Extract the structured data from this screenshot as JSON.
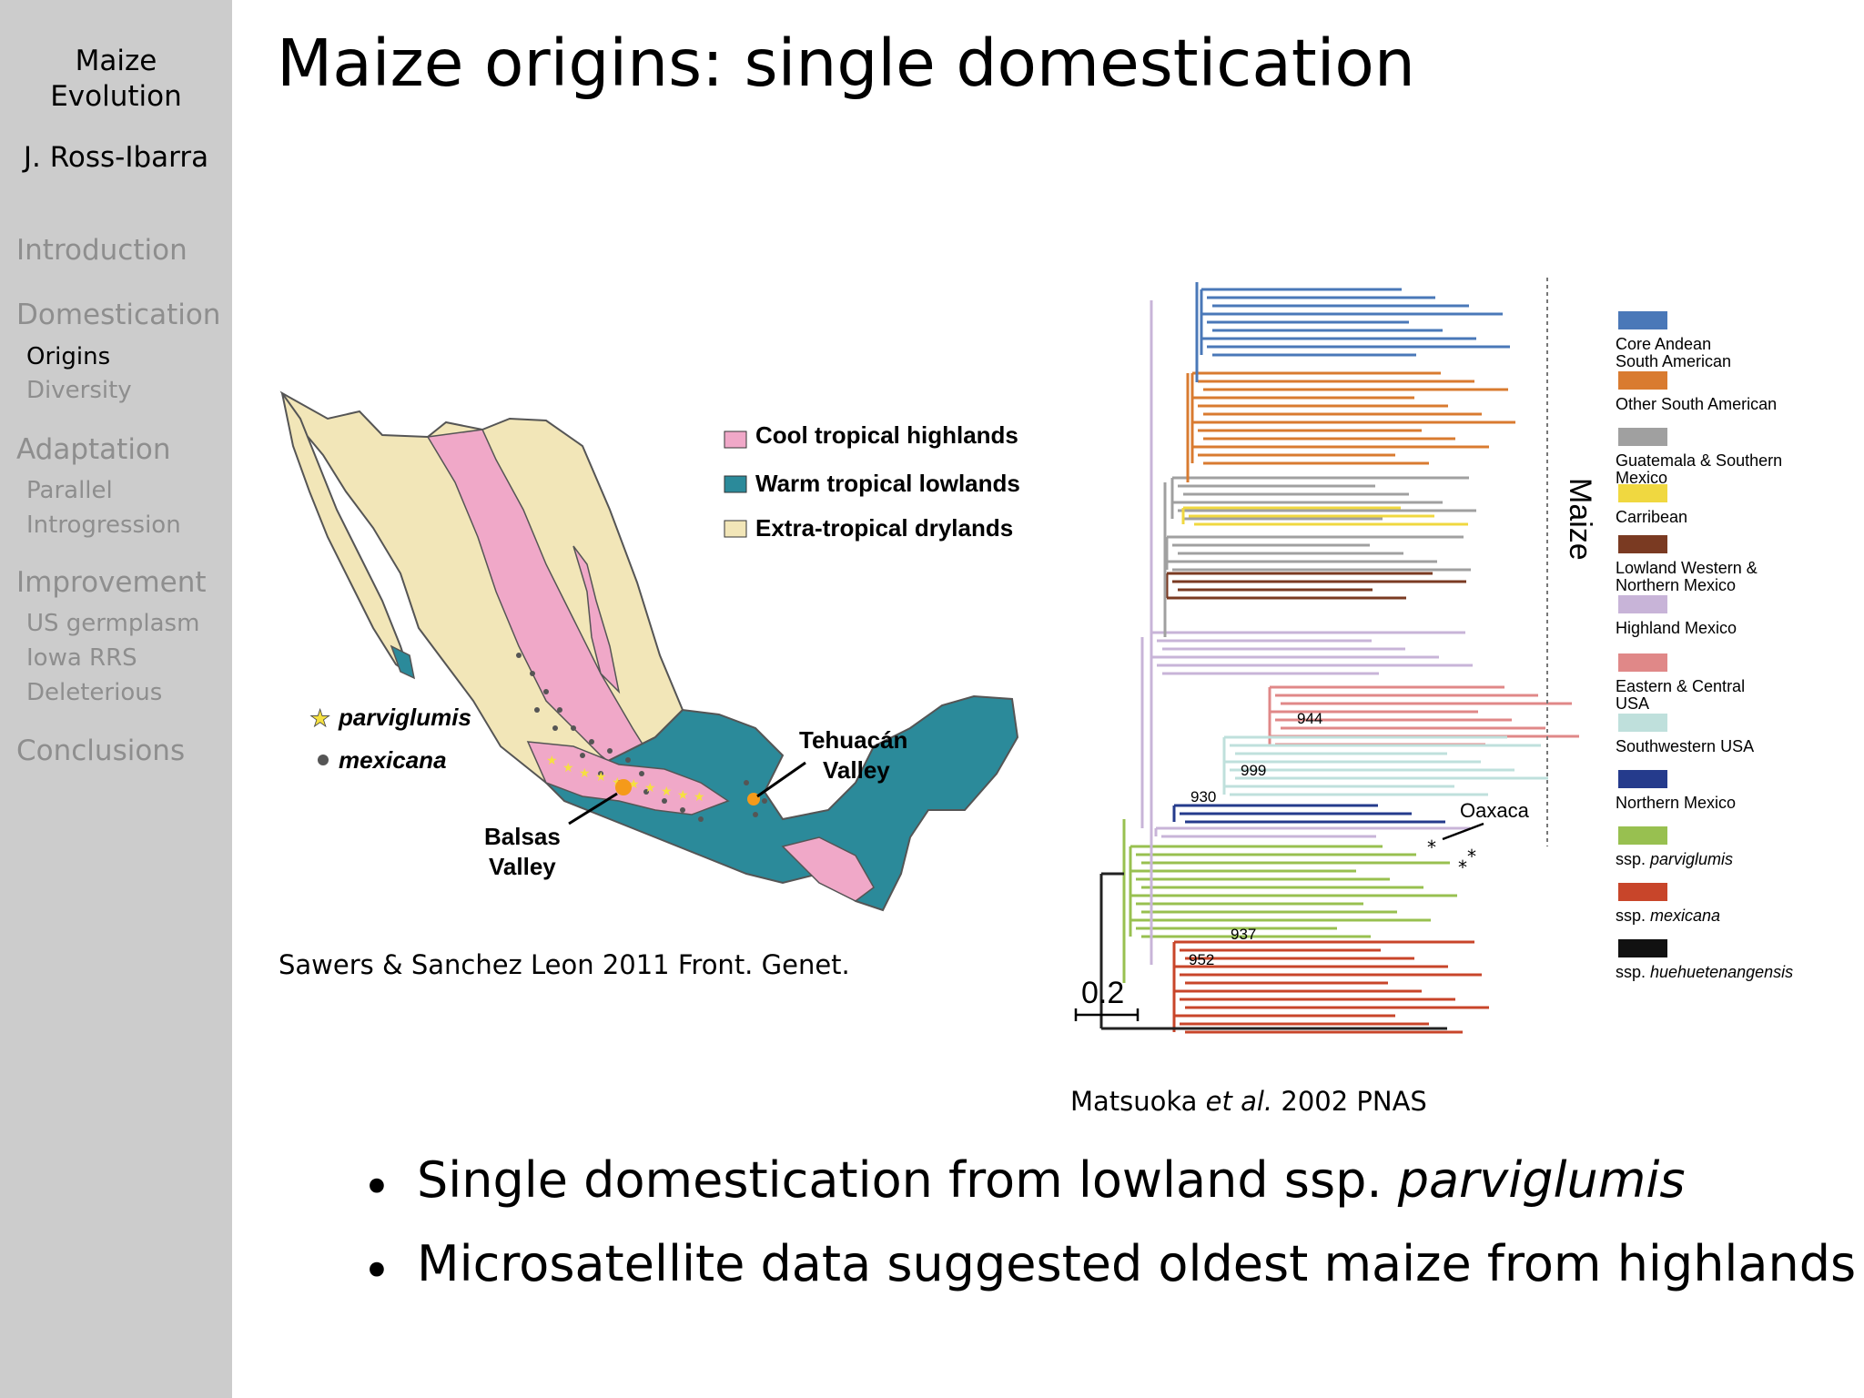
{
  "sidebar": {
    "title_line1": "Maize",
    "title_line2": "Evolution",
    "author": "J. Ross-Ibarra",
    "sections": [
      {
        "label": "Introduction",
        "subs": []
      },
      {
        "label": "Domestication",
        "subs": [
          "Origins",
          "Diversity"
        ]
      },
      {
        "label": "Adaptation",
        "subs": [
          "Parallel",
          "Introgression"
        ]
      },
      {
        "label": "Improvement",
        "subs": [
          "US germplasm",
          "Iowa RRS",
          "Deleterious"
        ]
      },
      {
        "label": "Conclusions",
        "subs": []
      }
    ],
    "active_sub": "Origins"
  },
  "slide": {
    "title": "Maize origins: single domestication",
    "bullets": [
      {
        "text": "Single domestication from lowland ssp. ",
        "italic": "parviglumis"
      },
      {
        "text": "Microsatellite data suggested oldest maize from highlands",
        "italic": ""
      }
    ]
  },
  "map_figure": {
    "legend": [
      "Cool tropical highlands",
      "Warm tropical lowlands",
      "Extra-tropical drylands"
    ],
    "legend_colors": [
      "#f0a8c8",
      "#2b8a9a",
      "#f2e6b8"
    ],
    "species": [
      "parviglumis",
      "mexicana"
    ],
    "places": {
      "tehuacan_1": "Tehuacán",
      "tehuacan_2": "Valley",
      "balsas_1": "Balsas",
      "balsas_2": "Valley"
    },
    "caption": "Sawers & Sanchez Leon 2011 Front. Genet."
  },
  "tree_figure": {
    "group_label": "Maize",
    "scale_label": "0.2",
    "bootstrap": [
      "944",
      "999",
      "930",
      "937",
      "952"
    ],
    "oaxaca": "Oaxaca",
    "caption_pre": "Matsuoka ",
    "caption_italic": "et al.",
    "caption_post": " 2002 PNAS",
    "legend": [
      {
        "line1": "Core Andean",
        "line2": "South American",
        "color": "#4a78b8"
      },
      {
        "line1": "Other South American",
        "line2": "",
        "color": "#d97b30"
      },
      {
        "line1": "Guatemala & Southern",
        "line2": "Mexico",
        "color": "#a0a0a0"
      },
      {
        "line1": "Carribean",
        "line2": "",
        "color": "#f0d840"
      },
      {
        "line1": "Lowland Western &",
        "line2": "Northern Mexico",
        "color": "#7a3a22"
      },
      {
        "line1": "Highland Mexico",
        "line2": "",
        "color": "#c8b4d8"
      },
      {
        "line1": "Eastern & Central",
        "line2": "USA",
        "color": "#e08888"
      },
      {
        "line1": "Southwestern USA",
        "line2": "",
        "color": "#bfe0dc"
      },
      {
        "line1": "Northern Mexico",
        "line2": "",
        "color": "#253b8c"
      },
      {
        "line1": "ssp. ",
        "italic": "parviglumis",
        "color": "#98c050"
      },
      {
        "line1": "ssp. ",
        "italic": "mexicana",
        "color": "#c8452a"
      },
      {
        "line1": "ssp. ",
        "italic": "huehuetenangensis",
        "color": "#111111"
      }
    ]
  }
}
